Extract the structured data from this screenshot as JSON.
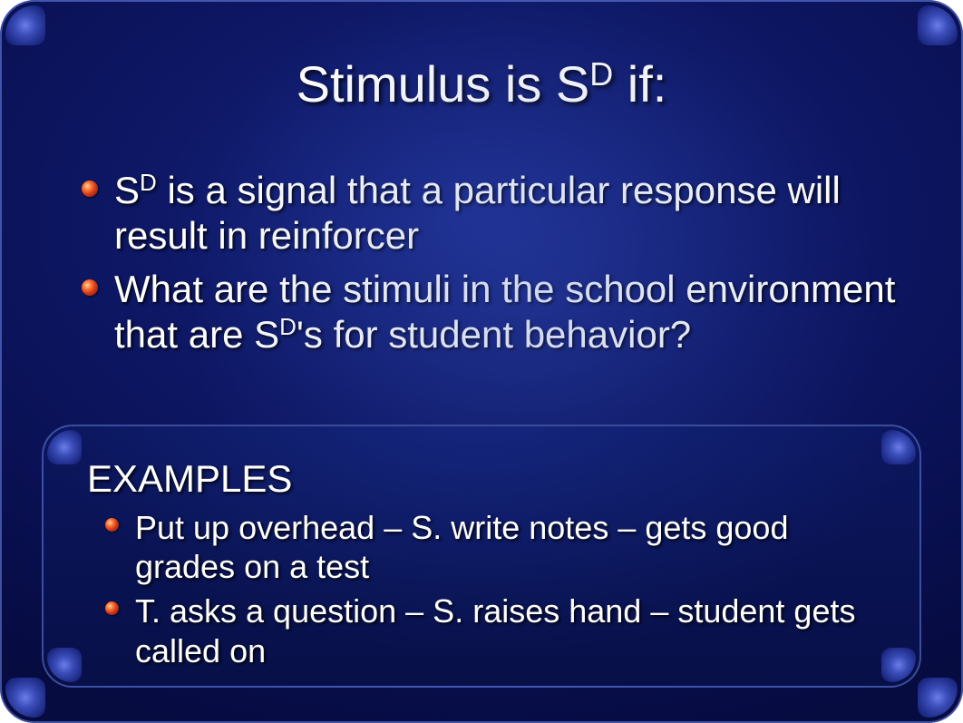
{
  "title": {
    "pre": "Stimulus is S",
    "sup": "D",
    "post": " if:",
    "fontsize": 56,
    "color": "#ffffff"
  },
  "bullets": [
    {
      "pre": "S",
      "sup": "D",
      "post": " is a signal that a particular response will result in reinforcer"
    },
    {
      "pre": "What are the stimuli in the school environment that are S",
      "sup": "D",
      "post": "'s for student behavior?"
    }
  ],
  "examples_heading": "EXAMPLES",
  "examples": [
    {
      "text": "Put up overhead – S. write notes – gets good grades on a test"
    },
    {
      "text": "T. asks a question – S. raises hand – student gets called on"
    }
  ],
  "style": {
    "background_colors": [
      "#1a2a8a",
      "#0e1866",
      "#0a1155",
      "#060b40"
    ],
    "border_color": "#7896ff",
    "bullet_gradient": [
      "#ffd7a0",
      "#ff7a3a",
      "#d13818",
      "#6a1608"
    ],
    "text_color": "#ffffff",
    "text_shadow": "rgba(0,0,0,0.85)",
    "body_fontsize": 42,
    "example_fontsize": 36,
    "corner_radius": 38,
    "font_family": "Arial"
  }
}
